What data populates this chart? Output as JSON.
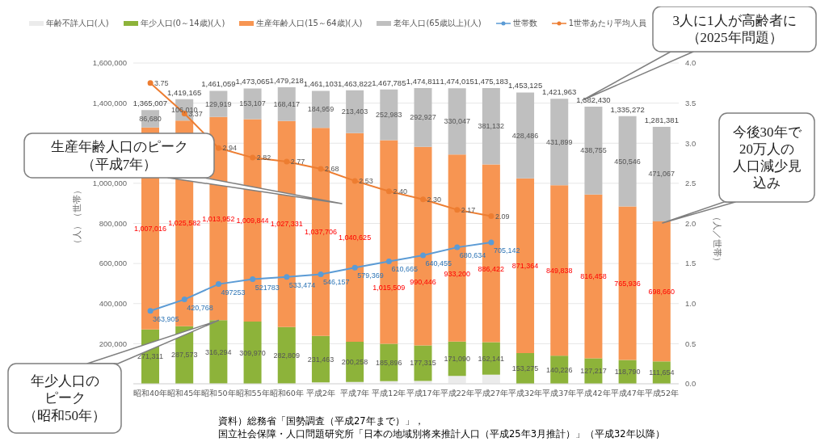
{
  "chart_data": {
    "type": "bar",
    "stacked": true,
    "grid": "y",
    "legend": "top",
    "marker": "circle",
    "categories": [
      "昭和40年",
      "昭和45年",
      "昭和50年",
      "昭和55年",
      "昭和60年",
      "平成2年",
      "平成7年",
      "平成12年",
      "平成17年",
      "平成22年",
      "平成27年",
      "平成32年",
      "平成37年",
      "平成42年",
      "平成47年",
      "平成52年"
    ],
    "ylabel": "（人）（世帯）",
    "y2label": "（人／世帯）",
    "ylim": [
      0,
      1600000
    ],
    "yticks": [
      {
        "value": 200000,
        "label": "200,000"
      },
      {
        "value": 400000,
        "label": "400,000"
      },
      {
        "value": 600000,
        "label": "600,000"
      },
      {
        "value": 800000,
        "label": "800,000"
      },
      {
        "value": 1000000,
        "label": "1,000,000"
      },
      {
        "value": 1200000,
        "label": null
      },
      {
        "value": 1400000,
        "label": "1,400,000"
      },
      {
        "value": 1600000,
        "label": "1,600,000"
      }
    ],
    "y2lim": [
      0,
      4
    ],
    "y2ticks": [
      {
        "value": 0,
        "label": "0.0"
      },
      {
        "value": 0.5,
        "label": "0.5"
      },
      {
        "value": 1,
        "label": "1.0"
      },
      {
        "value": 1.5,
        "label": "1.5"
      },
      {
        "value": 2,
        "label": "2.0"
      },
      {
        "value": 2.5,
        "label": "2.5"
      },
      {
        "value": 3,
        "label": "3.0"
      },
      {
        "value": 3.5,
        "label": "3.5"
      },
      {
        "value": 4,
        "label": "4.0"
      }
    ],
    "series": [
      {
        "name": "年齢不詳人口(人)",
        "color": "#ebebeb",
        "values": [
          0,
          0,
          894,
          144,
          661,
          6975,
          9536,
          13397,
          14123,
          39678,
          45488,
          0,
          0,
          0,
          0,
          0
        ]
      },
      {
        "name": "年少人口(0～14歳)(人)",
        "color": "#8db33a",
        "values": [
          271311,
          287573,
          316294,
          309970,
          282809,
          231463,
          200258,
          185896,
          177315,
          171090,
          162141,
          153275,
          140226,
          127217,
          118790,
          111654
        ],
        "value_labels": [
          "271,311",
          "287,573",
          "316,294",
          "309,970",
          "282,809",
          "231,463",
          "200,258",
          "185,896",
          "177,315",
          "171,090",
          "162,141",
          "153,275",
          "140,226",
          "127,217",
          "118,790",
          "111,654"
        ]
      },
      {
        "name": "生産年齢人口(15～64歳)(人)",
        "color": "#f79552",
        "values": [
          1007016,
          1025582,
          1013952,
          1009844,
          1027331,
          1037706,
          1040625,
          1015509,
          990446,
          933200,
          886422,
          871364,
          849838,
          816458,
          765936,
          698660
        ],
        "value_labels": [
          "1,007,016",
          "1,025,582",
          "1,013,952",
          "1,009,844",
          "1,027,331",
          "1,037,706",
          "1,040,625",
          "1,015,509",
          "990,446",
          "933,200",
          "886,422",
          "871,364",
          "849,838",
          "816,458",
          "765,936",
          "698,660"
        ]
      },
      {
        "name": "老年人口(65歳以上)(人)",
        "color": "#bfbfbf",
        "values": [
          86680,
          106010,
          129919,
          153107,
          168417,
          184959,
          213403,
          252983,
          292927,
          330047,
          381132,
          428486,
          431899,
          438755,
          450546,
          471067
        ],
        "value_labels": [
          "86,680",
          "106,010",
          "129,919",
          "153,107",
          "168,417",
          "184,959",
          "213,403",
          "252,983",
          "292,927",
          "330,047",
          "381,132",
          "428,486",
          "431,899",
          "438,755",
          "450,546",
          "471,067"
        ]
      },
      {
        "name": "世帯数",
        "type": "line",
        "color": "#5b9bd5",
        "values": [
          363905,
          420768,
          497253,
          521783,
          533474,
          546157,
          579369,
          610665,
          640455,
          680634,
          705142,
          null,
          null,
          null,
          null,
          null
        ],
        "value_labels": [
          "363,905",
          "420,768",
          "497253",
          "521783",
          "533,474",
          "546,157",
          "579,369",
          "610,665",
          "640,455",
          "680,634",
          "705,142",
          null,
          null,
          null,
          null,
          null
        ]
      },
      {
        "name": "1世帯あたり平均人員",
        "type": "line",
        "axis": "y2",
        "color": "#ed7d31",
        "values": [
          3.75,
          3.37,
          2.94,
          2.82,
          2.77,
          2.68,
          2.53,
          2.4,
          2.3,
          2.17,
          2.09,
          null,
          null,
          null,
          null,
          null
        ],
        "value_labels": [
          "3.75",
          "3.37",
          "2.94",
          "2.82",
          "2.77",
          "2.68",
          "2.53",
          "2.40",
          "2.30",
          "2.17",
          "2.09",
          null,
          null,
          null,
          null,
          null
        ]
      }
    ],
    "totals": [
      "1,365,007",
      "1,419,165",
      "1,461,059",
      "1,473,065",
      "1,479,218",
      "1,461,103",
      "1,463,822",
      "1,467,785",
      "1,474,811",
      "1,474,015",
      "1,475,183",
      "1,453,125",
      "1,421,963",
      "1,382,430",
      "1,335,272",
      "1,281,381"
    ],
    "annotations": [
      "3人に1人が高齢者に（2025年問題）",
      "生産年齢人口のピーク（平成7年）",
      "今後30年で20万人の人口減少見込み",
      {
        "text": "年少人口のピーク（昭和50年）",
        "x": "昭和50年",
        "y": 316294
      },
      "資料）総務省「国勢調査（平成27年まで）」，国立社会保障・人口問題研究所「日本の地域別将来推計人口（平成25年3月推計）」（平成32年以降）"
    ]
  }
}
